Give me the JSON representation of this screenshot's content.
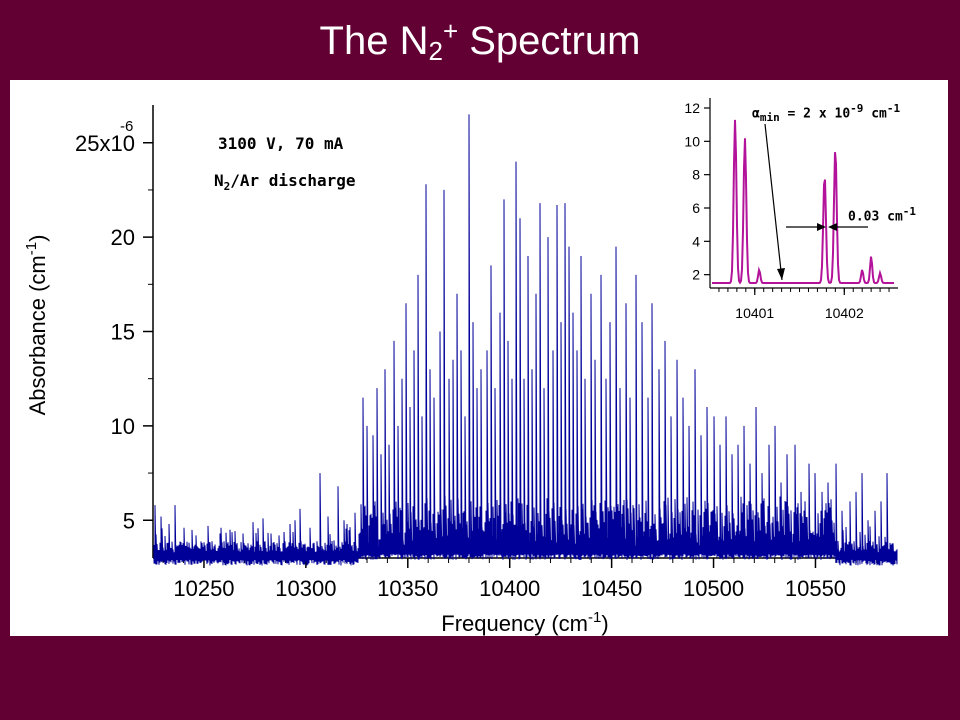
{
  "slide": {
    "title_main": "The N",
    "title_sub": "2",
    "title_sup": "+",
    "title_rest": " Spectrum"
  },
  "colors": {
    "background": "#630033",
    "spectrum": "#000099",
    "inset_trace": "#b3139a"
  },
  "annotations": {
    "conditions_line1": "3100 V, 70 mA",
    "gas_prefix": "N",
    "gas_sub": "2",
    "gas_suffix": "/Ar discharge",
    "alpha_symbol": "α",
    "alpha_sub": "min",
    "alpha_text": " = 2 x 10",
    "alpha_exp": "-9",
    "alpha_unit": " cm",
    "alpha_unit_exp": "-1",
    "width_text": "0.03 cm",
    "width_exp": "-1"
  },
  "chart_data": [
    {
      "type": "line",
      "xlabel": "Frequency (cm-1)",
      "xlabel_main": "Frequency (cm",
      "xlabel_exp": "-1",
      "xlabel_end": ")",
      "ylabel_main": "Absorbance (cm",
      "ylabel_exp": "-1",
      "ylabel_end": ")",
      "xlim": [
        10225,
        10590
      ],
      "ylim": [
        3,
        27
      ],
      "x_ticks": [
        10250,
        10300,
        10350,
        10400,
        10450,
        10500,
        10550
      ],
      "y_ticks": [
        5,
        10,
        15,
        20,
        25
      ],
      "y_tick_labels": [
        "5",
        "10",
        "15",
        "20",
        "25x10"
      ],
      "y_top_exp": "-6",
      "baseline": 3.3,
      "noise_level": 0.6,
      "peaks": [
        [
          10226,
          5.8
        ],
        [
          10229,
          5.2
        ],
        [
          10233,
          4.8
        ],
        [
          10236,
          5.8
        ],
        [
          10240,
          4.6
        ],
        [
          10246,
          4.2
        ],
        [
          10252,
          4.7
        ],
        [
          10258,
          4.3
        ],
        [
          10263,
          4.5
        ],
        [
          10269,
          4.3
        ],
        [
          10274,
          4.9
        ],
        [
          10279,
          5.1
        ],
        [
          10283,
          4.3
        ],
        [
          10287,
          4.2
        ],
        [
          10292,
          4.8
        ],
        [
          10297,
          5.6
        ],
        [
          10302,
          4.6
        ],
        [
          10307,
          7.5
        ],
        [
          10311,
          5.2
        ],
        [
          10316,
          6.8
        ],
        [
          10320,
          4.8
        ],
        [
          10324,
          5.4
        ],
        [
          10328,
          11.5
        ],
        [
          10330,
          10.0
        ],
        [
          10333,
          9.5
        ],
        [
          10335,
          12.0
        ],
        [
          10337,
          8.5
        ],
        [
          10339,
          13.0
        ],
        [
          10341,
          9.0
        ],
        [
          10343,
          14.5
        ],
        [
          10345,
          10.0
        ],
        [
          10347,
          12.5
        ],
        [
          10349,
          16.5
        ],
        [
          10351,
          11.0
        ],
        [
          10353,
          14.0
        ],
        [
          10355,
          18.0
        ],
        [
          10357,
          10.5
        ],
        [
          10359,
          22.8
        ],
        [
          10361,
          13.0
        ],
        [
          10363,
          11.5
        ],
        [
          10366,
          15.0
        ],
        [
          10368,
          22.5
        ],
        [
          10370,
          12.5
        ],
        [
          10372,
          13.5
        ],
        [
          10374,
          17.0
        ],
        [
          10376,
          14.0
        ],
        [
          10378,
          10.5
        ],
        [
          10380,
          26.5
        ],
        [
          10382,
          15.5
        ],
        [
          10384,
          12.0
        ],
        [
          10386,
          13.0
        ],
        [
          10389,
          14.0
        ],
        [
          10391,
          18.5
        ],
        [
          10393,
          12.0
        ],
        [
          10395,
          16.0
        ],
        [
          10397,
          22.0
        ],
        [
          10399,
          14.5
        ],
        [
          10401,
          12.5
        ],
        [
          10403,
          24.0
        ],
        [
          10405,
          21.0
        ],
        [
          10407,
          12.5
        ],
        [
          10409,
          19.0
        ],
        [
          10411,
          13.0
        ],
        [
          10413,
          17.0
        ],
        [
          10415,
          21.8
        ],
        [
          10417,
          12.0
        ],
        [
          10419,
          20.0
        ],
        [
          10421,
          14.0
        ],
        [
          10423,
          21.7
        ],
        [
          10425,
          15.5
        ],
        [
          10427,
          21.8
        ],
        [
          10429,
          19.5
        ],
        [
          10431,
          16.0
        ],
        [
          10433,
          14.0
        ],
        [
          10435,
          19.0
        ],
        [
          10437,
          12.5
        ],
        [
          10440,
          17.0
        ],
        [
          10442,
          13.5
        ],
        [
          10445,
          18.0
        ],
        [
          10447,
          12.5
        ],
        [
          10449,
          15.5
        ],
        [
          10452,
          19.5
        ],
        [
          10454,
          12.0
        ],
        [
          10457,
          16.5
        ],
        [
          10459,
          11.5
        ],
        [
          10462,
          18.0
        ],
        [
          10465,
          15.5
        ],
        [
          10468,
          11.5
        ],
        [
          10470,
          16.5
        ],
        [
          10473,
          13.0
        ],
        [
          10476,
          14.5
        ],
        [
          10479,
          10.5
        ],
        [
          10482,
          13.5
        ],
        [
          10485,
          11.5
        ],
        [
          10488,
          10.0
        ],
        [
          10491,
          13.0
        ],
        [
          10494,
          9.5
        ],
        [
          10497,
          11.0
        ],
        [
          10500,
          10.5
        ],
        [
          10503,
          9.0
        ],
        [
          10506,
          10.5
        ],
        [
          10509,
          8.5
        ],
        [
          10512,
          9.0
        ],
        [
          10515,
          10.0
        ],
        [
          10518,
          8.0
        ],
        [
          10521,
          11.0
        ],
        [
          10524,
          7.5
        ],
        [
          10527,
          9.0
        ],
        [
          10530,
          10.0
        ],
        [
          10533,
          7.0
        ],
        [
          10536,
          8.5
        ],
        [
          10540,
          9.0
        ],
        [
          10543,
          6.5
        ],
        [
          10547,
          8.0
        ],
        [
          10550,
          7.5
        ],
        [
          10553,
          6.5
        ],
        [
          10556,
          7.0
        ],
        [
          10560,
          8.0
        ],
        [
          10563,
          5.5
        ],
        [
          10567,
          6.0
        ],
        [
          10570,
          6.5
        ],
        [
          10573,
          7.5
        ],
        [
          10576,
          5.0
        ],
        [
          10579,
          5.5
        ],
        [
          10582,
          6.0
        ],
        [
          10585,
          7.5
        ]
      ]
    },
    {
      "type": "line",
      "xlim": [
        10400.5,
        10402.6
      ],
      "ylim": [
        1.2,
        12.6
      ],
      "x_ticks": [
        10401,
        10402
      ],
      "y_ticks": [
        2,
        4,
        6,
        8,
        10,
        12
      ],
      "baseline": 1.5,
      "peaks": [
        {
          "x": 10400.78,
          "y": 11.3,
          "w": 0.015
        },
        {
          "x": 10400.89,
          "y": 10.2,
          "w": 0.015
        },
        {
          "x": 10401.05,
          "y": 2.3,
          "w": 0.012
        },
        {
          "x": 10401.78,
          "y": 8.0,
          "w": 0.015
        },
        {
          "x": 10401.9,
          "y": 9.6,
          "w": 0.015
        },
        {
          "x": 10402.2,
          "y": 2.3,
          "w": 0.012
        },
        {
          "x": 10402.3,
          "y": 3.1,
          "w": 0.012
        },
        {
          "x": 10402.4,
          "y": 2.1,
          "w": 0.012
        }
      ]
    }
  ]
}
